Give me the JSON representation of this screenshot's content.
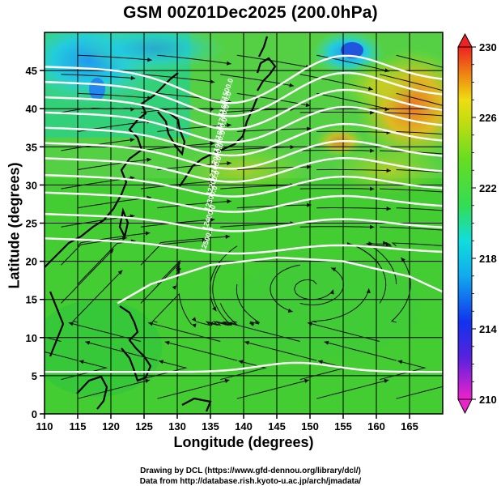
{
  "title": "GSM 00Z01Dec2025 (200.0hPa)",
  "xlabel": "Longitude (degrees)",
  "ylabel": "Latitude  (degrees)",
  "credits": {
    "line1": "Drawing by DCL (https://www.gfd-dennou.org/library/dcl/)",
    "line2": "Data from http://database.rish.kyoto-u.ac.jp/arch/jmadata/"
  },
  "chart_data": {
    "type": "map",
    "x_range": [
      110,
      170
    ],
    "y_range": [
      0,
      50
    ],
    "x_ticks": [
      "110",
      "115",
      "120",
      "125",
      "130",
      "135",
      "140",
      "145",
      "150",
      "155",
      "160",
      "165"
    ],
    "y_ticks": [
      "0",
      "5",
      "10",
      "15",
      "20",
      "25",
      "30",
      "35",
      "40",
      "45"
    ],
    "x_tick_values": [
      110,
      115,
      120,
      125,
      130,
      135,
      140,
      145,
      150,
      155,
      160,
      165
    ],
    "y_tick_values": [
      0,
      5,
      10,
      15,
      20,
      25,
      30,
      35,
      40,
      45
    ],
    "colorbar": {
      "min": 210,
      "max": 230,
      "labels": [
        "230",
        "226",
        "222",
        "218",
        "214",
        "210"
      ],
      "label_values": [
        230,
        226,
        222,
        218,
        214,
        210
      ]
    },
    "contour_labels": [
      "11500.0",
      "11600.0",
      "11700.0",
      "11800.0",
      "11900.0",
      "12000.0",
      "12100.0",
      "12200.0",
      "12300.0",
      "12400.0",
      "12500.0"
    ]
  }
}
